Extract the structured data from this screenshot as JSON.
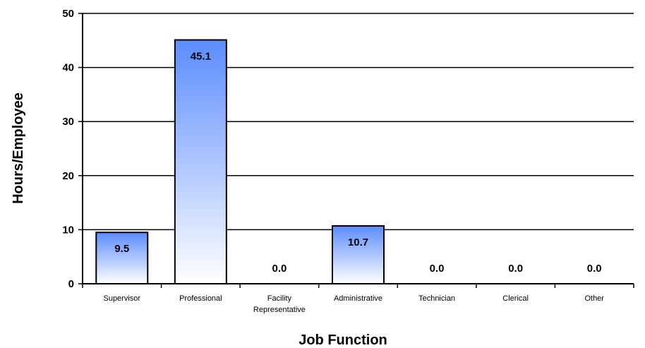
{
  "chart_data": {
    "type": "bar",
    "categories": [
      [
        "Supervisor"
      ],
      [
        "Professional"
      ],
      [
        "Facility",
        "Representative"
      ],
      [
        "Administrative"
      ],
      [
        "Technician"
      ],
      [
        "Clerical"
      ],
      [
        "Other"
      ]
    ],
    "values": [
      9.5,
      45.1,
      0.0,
      10.7,
      0.0,
      0.0,
      0.0
    ],
    "data_labels": [
      "9.5",
      "45.1",
      "0.0",
      "10.7",
      "0.0",
      "0.0",
      "0.0"
    ],
    "xlabel": "Job Function",
    "ylabel": "Hours/Employee",
    "ylim": [
      0,
      50
    ],
    "yticks": [
      "0",
      "10",
      "20",
      "30",
      "40",
      "50"
    ],
    "grid": true,
    "bar_color_top": "#5b8cff",
    "bar_color_bottom": "#ffffff"
  }
}
